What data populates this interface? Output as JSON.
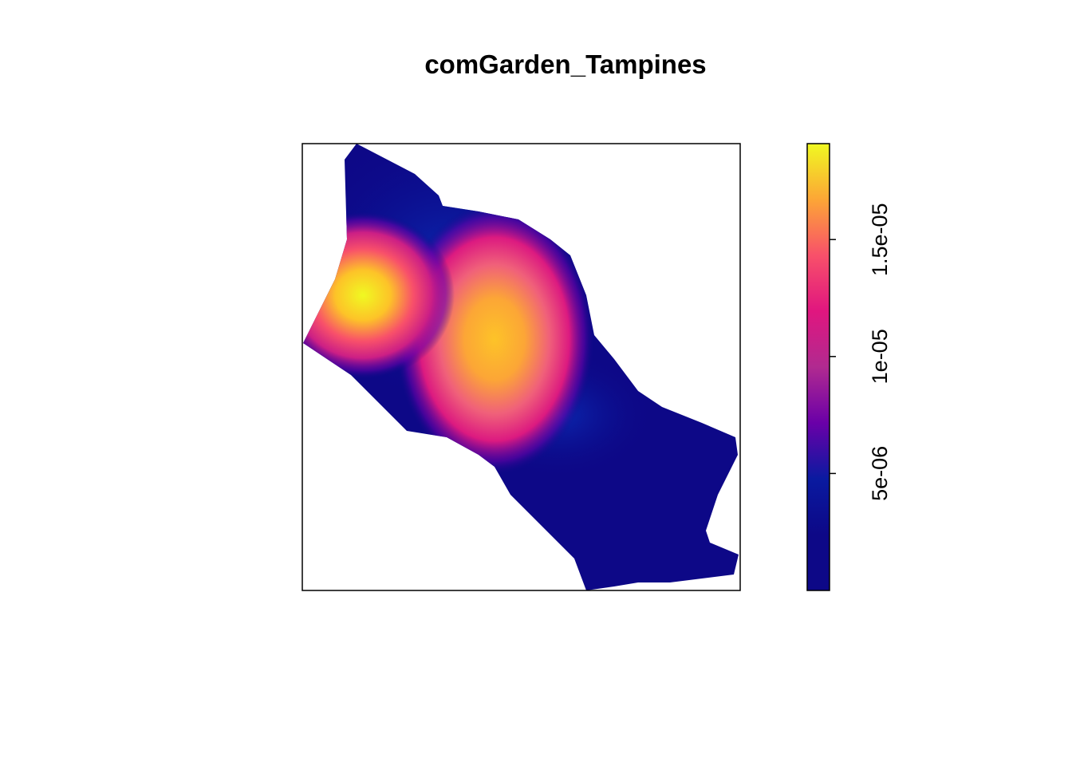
{
  "chart_data": {
    "type": "density-map",
    "title": "comGarden_Tampines",
    "zlim": [
      0,
      1.91e-05
    ],
    "zticks": [
      {
        "value": 5e-06,
        "label": "5e-06"
      },
      {
        "value": 1e-05,
        "label": "1e-05"
      },
      {
        "value": 1.5e-05,
        "label": "1.5e-05"
      }
    ],
    "colormap": [
      "#0d0887",
      "#0d0887",
      "#0a1aa0",
      "#6a00a8",
      "#b12a90",
      "#e0167f",
      "#f8506a",
      "#fca636",
      "#f0f921"
    ]
  }
}
